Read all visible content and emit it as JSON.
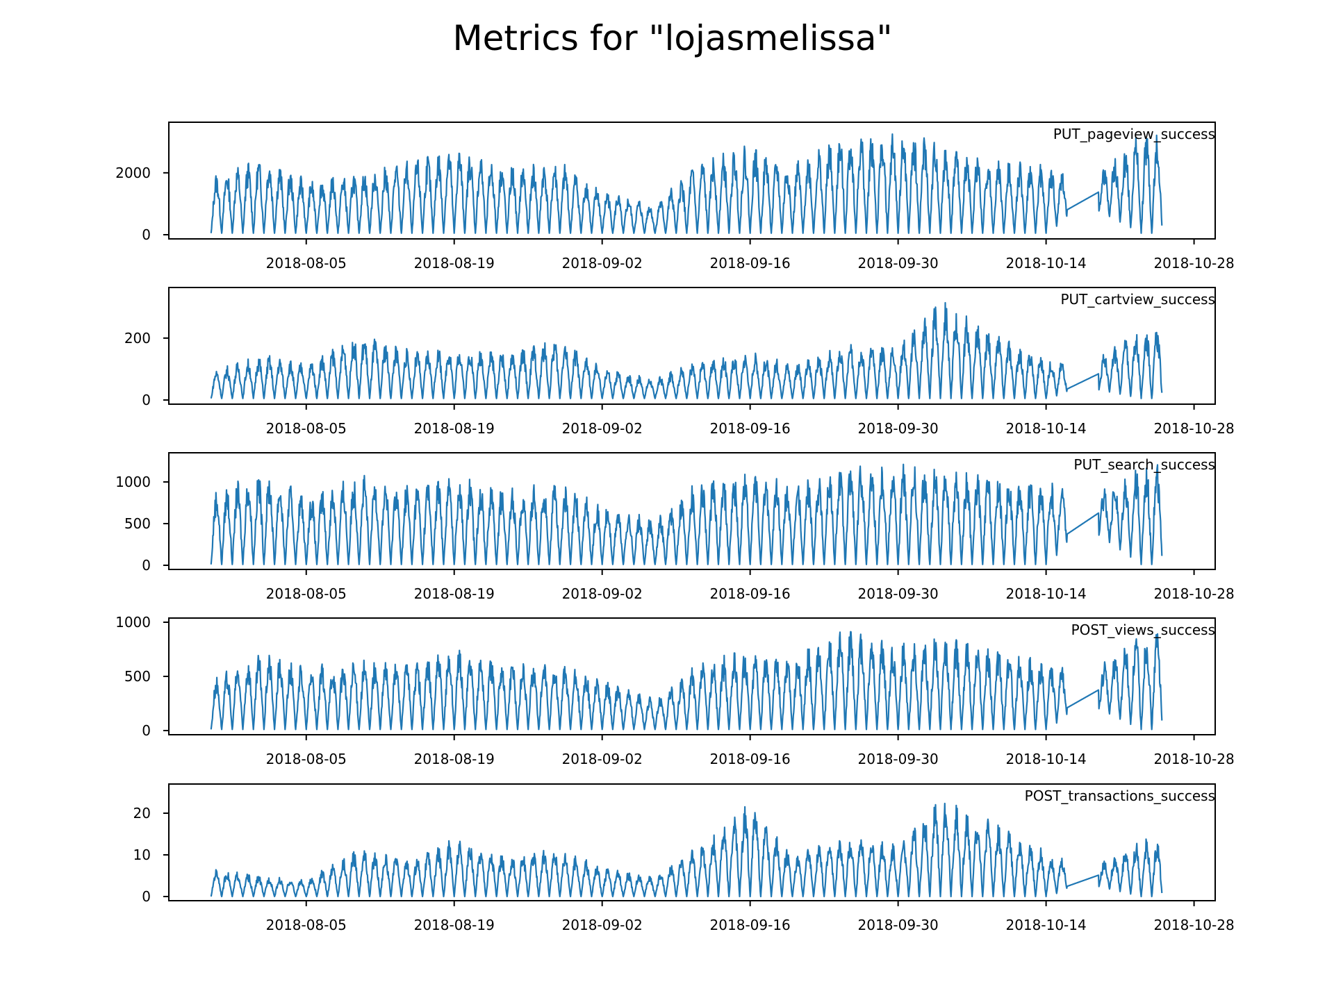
{
  "figure": {
    "title": "Metrics for \"lojasmelissa\""
  },
  "colors": {
    "line": "#1f77b4",
    "axes": "#000000",
    "background": "#ffffff"
  },
  "chart_data": [
    {
      "type": "line",
      "series": [
        {
          "name": "PUT_pageview_success",
          "x": [
            "2018-07-27",
            "2018-08-01",
            "2018-08-05",
            "2018-08-10",
            "2018-08-15",
            "2018-08-19",
            "2018-08-24",
            "2018-08-29",
            "2018-09-02",
            "2018-09-07",
            "2018-09-11",
            "2018-09-16",
            "2018-09-20",
            "2018-09-25",
            "2018-09-30",
            "2018-10-04",
            "2018-10-09",
            "2018-10-14",
            "2018-10-18",
            "2018-10-23"
          ],
          "peaks": [
            1950,
            2550,
            1800,
            2100,
            2450,
            2900,
            2300,
            2400,
            1500,
            1000,
            2400,
            2950,
            2300,
            3350,
            3350,
            3100,
            2450,
            2300,
            1850,
            3350
          ],
          "troughs": [
            50,
            50,
            50,
            50,
            50,
            50,
            50,
            50,
            50,
            50,
            50,
            50,
            50,
            50,
            50,
            50,
            50,
            50,
            950,
            50
          ],
          "period_days": 1
        }
      ],
      "label": "PUT_pageview_success",
      "x_ticks": [
        "2018-08-05",
        "2018-08-19",
        "2018-09-02",
        "2018-09-16",
        "2018-09-30",
        "2018-10-14",
        "2018-10-28"
      ],
      "y_ticks": [
        "0",
        "2000"
      ],
      "ylim": [
        0,
        3500
      ],
      "xlim": [
        "2018-07-23",
        "2018-10-30"
      ]
    },
    {
      "type": "line",
      "series": [
        {
          "name": "PUT_cartview_success",
          "x": [
            "2018-07-27",
            "2018-08-01",
            "2018-08-05",
            "2018-08-10",
            "2018-08-15",
            "2018-08-19",
            "2018-08-24",
            "2018-08-29",
            "2018-09-02",
            "2018-09-07",
            "2018-09-11",
            "2018-09-16",
            "2018-09-20",
            "2018-09-25",
            "2018-09-30",
            "2018-10-04",
            "2018-10-09",
            "2018-10-14",
            "2018-10-18",
            "2018-10-23"
          ],
          "peaks": [
            95,
            150,
            120,
            220,
            160,
            180,
            160,
            205,
            110,
            70,
            130,
            160,
            120,
            180,
            190,
            330,
            220,
            140,
            120,
            240
          ],
          "troughs": [
            5,
            5,
            5,
            5,
            5,
            5,
            5,
            5,
            5,
            5,
            5,
            5,
            5,
            5,
            5,
            5,
            5,
            5,
            40,
            5
          ],
          "period_days": 1
        }
      ],
      "label": "PUT_cartview_success",
      "x_ticks": [
        "2018-08-05",
        "2018-08-19",
        "2018-09-02",
        "2018-09-16",
        "2018-09-30",
        "2018-10-14",
        "2018-10-28"
      ],
      "y_ticks": [
        "0",
        "200"
      ],
      "ylim": [
        0,
        350
      ],
      "xlim": [
        "2018-07-23",
        "2018-10-30"
      ]
    },
    {
      "type": "line",
      "series": [
        {
          "name": "PUT_search_success",
          "x": [
            "2018-07-27",
            "2018-08-01",
            "2018-08-05",
            "2018-08-10",
            "2018-08-15",
            "2018-08-19",
            "2018-08-24",
            "2018-08-29",
            "2018-09-02",
            "2018-09-07",
            "2018-09-11",
            "2018-09-16",
            "2018-09-20",
            "2018-09-25",
            "2018-09-30",
            "2018-10-04",
            "2018-10-09",
            "2018-10-14",
            "2018-10-18",
            "2018-10-23"
          ],
          "peaks": [
            900,
            1150,
            850,
            1100,
            1000,
            1100,
            950,
            1000,
            750,
            550,
            1050,
            1150,
            1000,
            1250,
            1250,
            1200,
            1100,
            1050,
            900,
            1250
          ],
          "troughs": [
            10,
            10,
            10,
            10,
            10,
            10,
            10,
            10,
            10,
            10,
            10,
            10,
            10,
            10,
            10,
            10,
            10,
            10,
            450,
            10
          ],
          "period_days": 1
        }
      ],
      "label": "PUT_search_success",
      "x_ticks": [
        "2018-08-05",
        "2018-08-19",
        "2018-09-02",
        "2018-09-16",
        "2018-09-30",
        "2018-10-14",
        "2018-10-28"
      ],
      "y_ticks": [
        "0",
        "500",
        "1000"
      ],
      "ylim": [
        0,
        1300
      ],
      "xlim": [
        "2018-07-23",
        "2018-10-30"
      ]
    },
    {
      "type": "line",
      "series": [
        {
          "name": "POST_views_success",
          "x": [
            "2018-07-27",
            "2018-08-01",
            "2018-08-05",
            "2018-08-10",
            "2018-08-15",
            "2018-08-19",
            "2018-08-24",
            "2018-08-29",
            "2018-09-02",
            "2018-09-07",
            "2018-09-11",
            "2018-09-16",
            "2018-09-20",
            "2018-09-25",
            "2018-09-30",
            "2018-10-04",
            "2018-10-09",
            "2018-10-14",
            "2018-10-18",
            "2018-10-23"
          ],
          "peaks": [
            480,
            740,
            600,
            660,
            650,
            780,
            660,
            640,
            500,
            300,
            630,
            770,
            700,
            960,
            800,
            900,
            780,
            650,
            500,
            960
          ],
          "troughs": [
            10,
            10,
            10,
            10,
            10,
            10,
            10,
            10,
            10,
            10,
            10,
            10,
            10,
            10,
            10,
            10,
            10,
            10,
            250,
            10
          ],
          "period_days": 1
        }
      ],
      "label": "POST_views_success",
      "x_ticks": [
        "2018-08-05",
        "2018-08-19",
        "2018-09-02",
        "2018-09-16",
        "2018-09-30",
        "2018-10-14",
        "2018-10-28"
      ],
      "y_ticks": [
        "0",
        "500",
        "1000"
      ],
      "ylim": [
        0,
        1000
      ],
      "xlim": [
        "2018-07-23",
        "2018-10-30"
      ]
    },
    {
      "type": "line",
      "series": [
        {
          "name": "POST_transactions_success",
          "x": [
            "2018-07-27",
            "2018-08-01",
            "2018-08-05",
            "2018-08-10",
            "2018-08-15",
            "2018-08-19",
            "2018-08-24",
            "2018-08-29",
            "2018-09-02",
            "2018-09-07",
            "2018-09-11",
            "2018-09-16",
            "2018-09-20",
            "2018-09-25",
            "2018-09-30",
            "2018-10-04",
            "2018-10-09",
            "2018-10-14",
            "2018-10-18",
            "2018-10-23"
          ],
          "peaks": [
            7,
            5,
            4,
            12,
            9,
            14,
            10,
            12,
            7,
            5,
            12,
            23,
            10,
            15,
            13,
            24,
            18,
            11,
            7,
            14
          ],
          "troughs": [
            0,
            0,
            0,
            0,
            0,
            0,
            0,
            0,
            0,
            0,
            0,
            0,
            0,
            0,
            0,
            0,
            0,
            0,
            3,
            0
          ],
          "period_days": 1
        }
      ],
      "label": "POST_transactions_success",
      "x_ticks": [
        "2018-08-05",
        "2018-08-19",
        "2018-09-02",
        "2018-09-16",
        "2018-09-30",
        "2018-10-14",
        "2018-10-28"
      ],
      "y_ticks": [
        "0",
        "10",
        "20"
      ],
      "ylim": [
        0,
        26
      ],
      "xlim": [
        "2018-07-23",
        "2018-10-30"
      ]
    }
  ]
}
